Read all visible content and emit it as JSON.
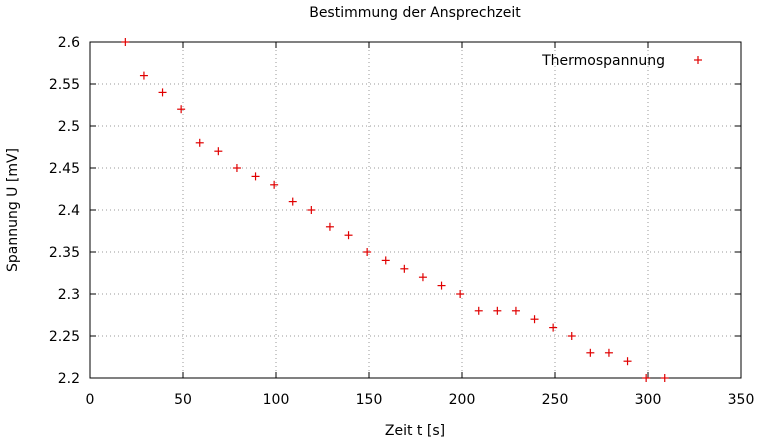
{
  "chart_data": {
    "type": "scatter",
    "title": "Bestimmung der Ansprechzeit",
    "xlabel": "Zeit t [s]",
    "ylabel": "Spannung U [mV]",
    "xlim": [
      0,
      350
    ],
    "ylim": [
      2.2,
      2.6
    ],
    "x_ticks": [
      "0",
      "50",
      "100",
      "150",
      "200",
      "250",
      "300",
      "350"
    ],
    "y_ticks": [
      "2.2",
      "2.25",
      "2.3",
      "2.35",
      "2.4",
      "2.45",
      "2.5",
      "2.55",
      "2.6"
    ],
    "grid": true,
    "legend_position": "top-right",
    "series": [
      {
        "name": "Thermospannung",
        "color": "#e00000",
        "marker": "plus",
        "points": [
          [
            19,
            2.6
          ],
          [
            29,
            2.56
          ],
          [
            39,
            2.54
          ],
          [
            49,
            2.52
          ],
          [
            59,
            2.48
          ],
          [
            69,
            2.47
          ],
          [
            79,
            2.45
          ],
          [
            89,
            2.44
          ],
          [
            99,
            2.43
          ],
          [
            109,
            2.41
          ],
          [
            119,
            2.4
          ],
          [
            129,
            2.38
          ],
          [
            139,
            2.37
          ],
          [
            149,
            2.35
          ],
          [
            159,
            2.34
          ],
          [
            169,
            2.33
          ],
          [
            179,
            2.32
          ],
          [
            189,
            2.31
          ],
          [
            199,
            2.3
          ],
          [
            209,
            2.28
          ],
          [
            219,
            2.28
          ],
          [
            229,
            2.28
          ],
          [
            239,
            2.27
          ],
          [
            249,
            2.26
          ],
          [
            259,
            2.25
          ],
          [
            269,
            2.23
          ],
          [
            279,
            2.23
          ],
          [
            289,
            2.22
          ],
          [
            299,
            2.2
          ],
          [
            309,
            2.2
          ]
        ]
      }
    ]
  }
}
